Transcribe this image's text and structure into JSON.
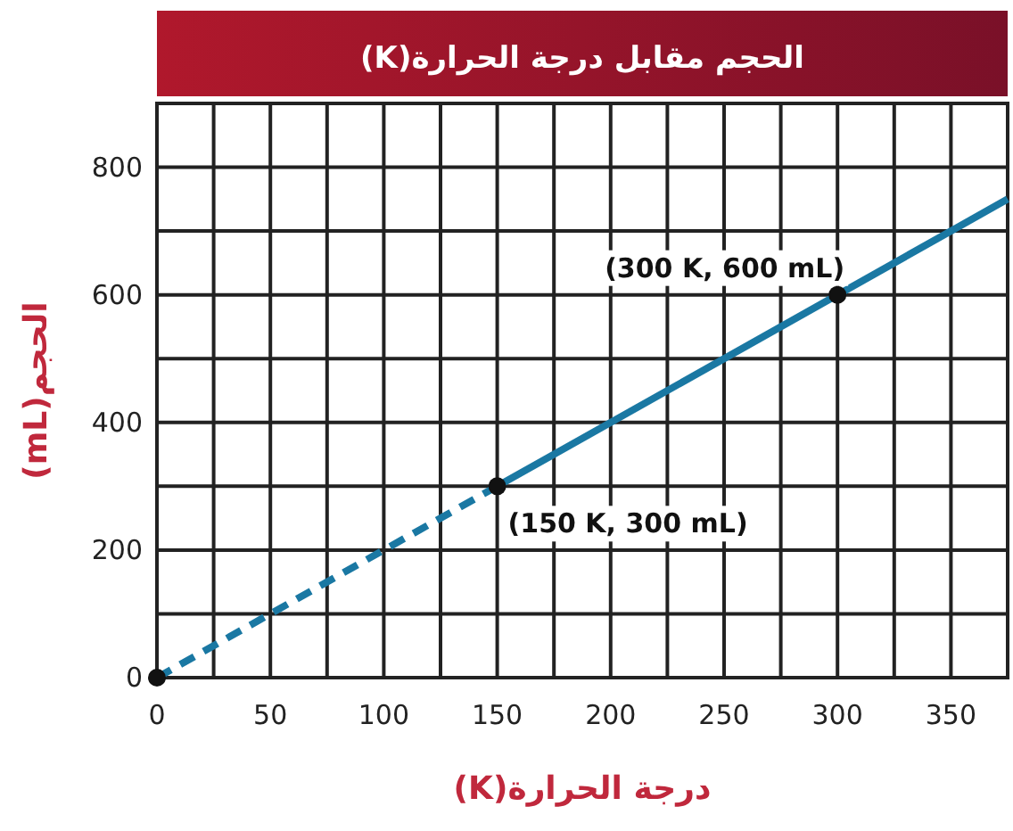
{
  "chart_data": {
    "type": "line",
    "title": "الحجم مقابل درجة الحرارة(K)",
    "xlabel": "درجة الحرارة(K)",
    "ylabel": "الحجم(mL)",
    "xlim": [
      0,
      375
    ],
    "ylim": [
      0,
      900
    ],
    "xticks": [
      0,
      {
        "value": 25,
        "label": null
      },
      50,
      {
        "value": 75,
        "label": null
      },
      100,
      {
        "value": 125,
        "label": null
      },
      150,
      {
        "value": 175,
        "label": null
      },
      200,
      {
        "value": 225,
        "label": null
      },
      250,
      {
        "value": 275,
        "label": null
      },
      300,
      {
        "value": 325,
        "label": null
      },
      350
    ],
    "yticks": [
      0,
      {
        "value": 100,
        "label": null
      },
      200,
      {
        "value": 300,
        "label": null
      },
      400,
      {
        "value": 500,
        "label": null
      },
      600,
      {
        "value": 700,
        "label": null
      },
      800
    ],
    "grid": true,
    "series": [
      {
        "type": "line",
        "color": "#1a78a3",
        "line_style": "dashed",
        "marker": "none",
        "x": [
          0,
          150
        ],
        "values": [
          0,
          300
        ]
      },
      {
        "type": "line",
        "color": "#1a78a3",
        "line_style": "solid",
        "marker": "none",
        "x": [
          150,
          375
        ],
        "values": [
          300,
          750
        ]
      },
      {
        "type": "scatter",
        "color": "#111111",
        "marker": "circle",
        "x": [
          0,
          150,
          300
        ],
        "values": [
          0,
          300,
          600
        ]
      }
    ],
    "annotations": [
      {
        "text": "(300 K, 600 mL)",
        "x": 300,
        "y": 600
      },
      {
        "text": "(150 K, 300 mL)",
        "x": 150,
        "y": 300
      }
    ]
  }
}
